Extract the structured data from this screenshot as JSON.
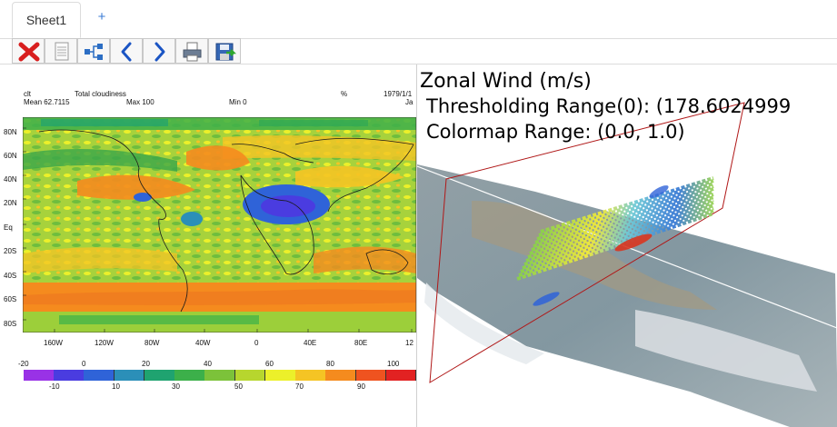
{
  "tabs": [
    {
      "label": "Sheet1"
    }
  ],
  "add_tab_label": "+",
  "toolbar": [
    {
      "icon": "close-icon"
    },
    {
      "icon": "document-icon"
    },
    {
      "icon": "tree-icon"
    },
    {
      "icon": "chevron-left-icon"
    },
    {
      "icon": "chevron-right-icon"
    },
    {
      "icon": "printer-icon"
    },
    {
      "icon": "save-icon"
    }
  ],
  "left_plot": {
    "header": {
      "variable": "clt",
      "long_name": "Total cloudiness",
      "units": "%",
      "date": "1979/1/1",
      "mean": "Mean 62.7115",
      "max": "Max 100",
      "min": "Min 0",
      "edge": "Ja"
    },
    "lat_labels": [
      "80N",
      "60N",
      "40N",
      "20N",
      "Eq",
      "20S",
      "40S",
      "60S",
      "80S"
    ],
    "lon_labels": [
      "160W",
      "120W",
      "80W",
      "40W",
      "0",
      "40E",
      "80E",
      "12"
    ],
    "colorbar_top_labels": [
      "-20",
      "0",
      "20",
      "40",
      "60",
      "80",
      "100"
    ],
    "colorbar_bottom_labels": [
      "-10",
      "10",
      "30",
      "50",
      "70",
      "90"
    ],
    "colorbar_colors": [
      "#9932e6",
      "#4a3ce0",
      "#2f63d8",
      "#2b8fb8",
      "#1fa370",
      "#3cb04a",
      "#7cc23a",
      "#b7d62e",
      "#ecf02a",
      "#f5c424",
      "#f58b1e",
      "#ef5320",
      "#e22222"
    ]
  },
  "right_plot": {
    "title": "Zonal Wind (m/s)",
    "threshold": "Thresholding Range(0): (178.6024999",
    "colormap": "Colormap Range: (0.0, 1.0)"
  }
}
